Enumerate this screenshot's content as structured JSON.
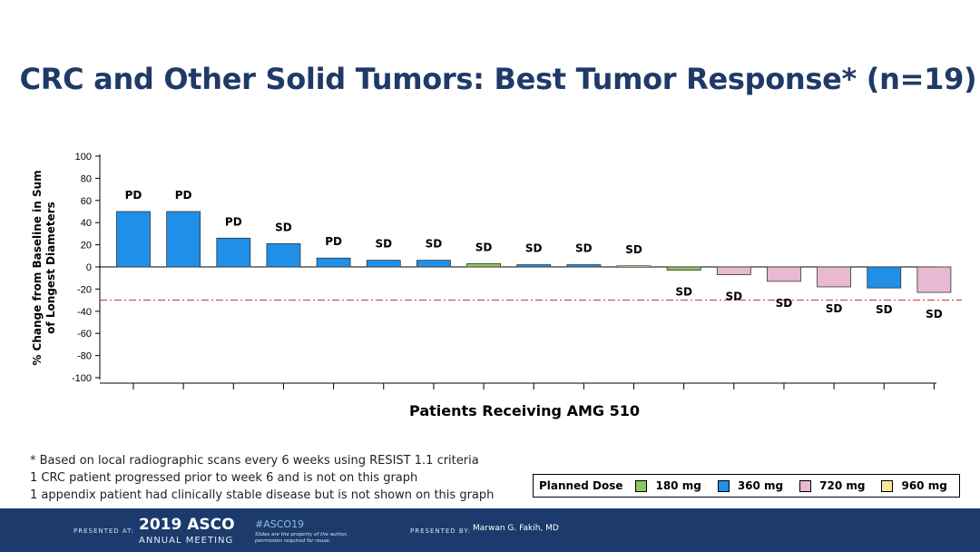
{
  "slide": {
    "title": "CRC and Other Solid Tumors: Best Tumor Response* (n=19)"
  },
  "footnotes": [
    "* Based on local radiographic scans every 6 weeks using RESIST 1.1 criteria",
    "1 CRC patient progressed prior to week 6 and is not on this graph",
    "1 appendix patient had clinically stable disease but is not shown on this graph"
  ],
  "legend": {
    "title": "Planned Dose",
    "items": [
      {
        "label": "180 mg",
        "color": "#8dc863"
      },
      {
        "label": "360 mg",
        "color": "#1f8fe8"
      },
      {
        "label": "720 mg",
        "color": "#e9b9d1"
      },
      {
        "label": "960 mg",
        "color": "#f4e79a"
      }
    ]
  },
  "footer": {
    "presented_at": "PRESENTED AT:",
    "year_brand": "2019 ASCO",
    "meeting": "ANNUAL MEETING",
    "hashtag": "#ASCO19",
    "note_line1": "Slides are the property of the author,",
    "note_line2": "permission required for reuse.",
    "presented_by": "PRESENTED BY:",
    "presenter": "Marwan G. Fakih, MD"
  },
  "chart_data": {
    "type": "bar",
    "title": "",
    "xlabel": "Patients Receiving AMG 510",
    "ylabel_lines": [
      "% Change from Baseline in Sum",
      "of Longest Diameters"
    ],
    "ylim": [
      -100,
      100
    ],
    "yticks": [
      100,
      80,
      60,
      40,
      20,
      0,
      -20,
      -40,
      -60,
      -80,
      -100
    ],
    "reference_line": -30,
    "grid": false,
    "dose_colors": {
      "180 mg": "#8dc863",
      "360 mg": "#1f8fe8",
      "720 mg": "#e9b9d1",
      "960 mg": "#f4e79a"
    },
    "bars": [
      {
        "value": 50,
        "label": "PD",
        "dose": "360 mg"
      },
      {
        "value": 50,
        "label": "PD",
        "dose": "360 mg"
      },
      {
        "value": 26,
        "label": "PD",
        "dose": "360 mg"
      },
      {
        "value": 21,
        "label": "SD",
        "dose": "360 mg"
      },
      {
        "value": 8,
        "label": "PD",
        "dose": "360 mg"
      },
      {
        "value": 6,
        "label": "SD",
        "dose": "360 mg"
      },
      {
        "value": 6,
        "label": "SD",
        "dose": "360 mg"
      },
      {
        "value": 3,
        "label": "SD",
        "dose": "180 mg"
      },
      {
        "value": 2,
        "label": "SD",
        "dose": "360 mg"
      },
      {
        "value": 2,
        "label": "SD",
        "dose": "360 mg"
      },
      {
        "value": 1,
        "label": "SD",
        "dose": "960 mg"
      },
      {
        "value": -3,
        "label": "SD",
        "dose": "180 mg"
      },
      {
        "value": -7,
        "label": "SD",
        "dose": "720 mg"
      },
      {
        "value": -13,
        "label": "SD",
        "dose": "720 mg"
      },
      {
        "value": -18,
        "label": "SD",
        "dose": "720 mg"
      },
      {
        "value": -19,
        "label": "SD",
        "dose": "360 mg"
      },
      {
        "value": -23,
        "label": "SD",
        "dose": "720 mg"
      }
    ]
  }
}
